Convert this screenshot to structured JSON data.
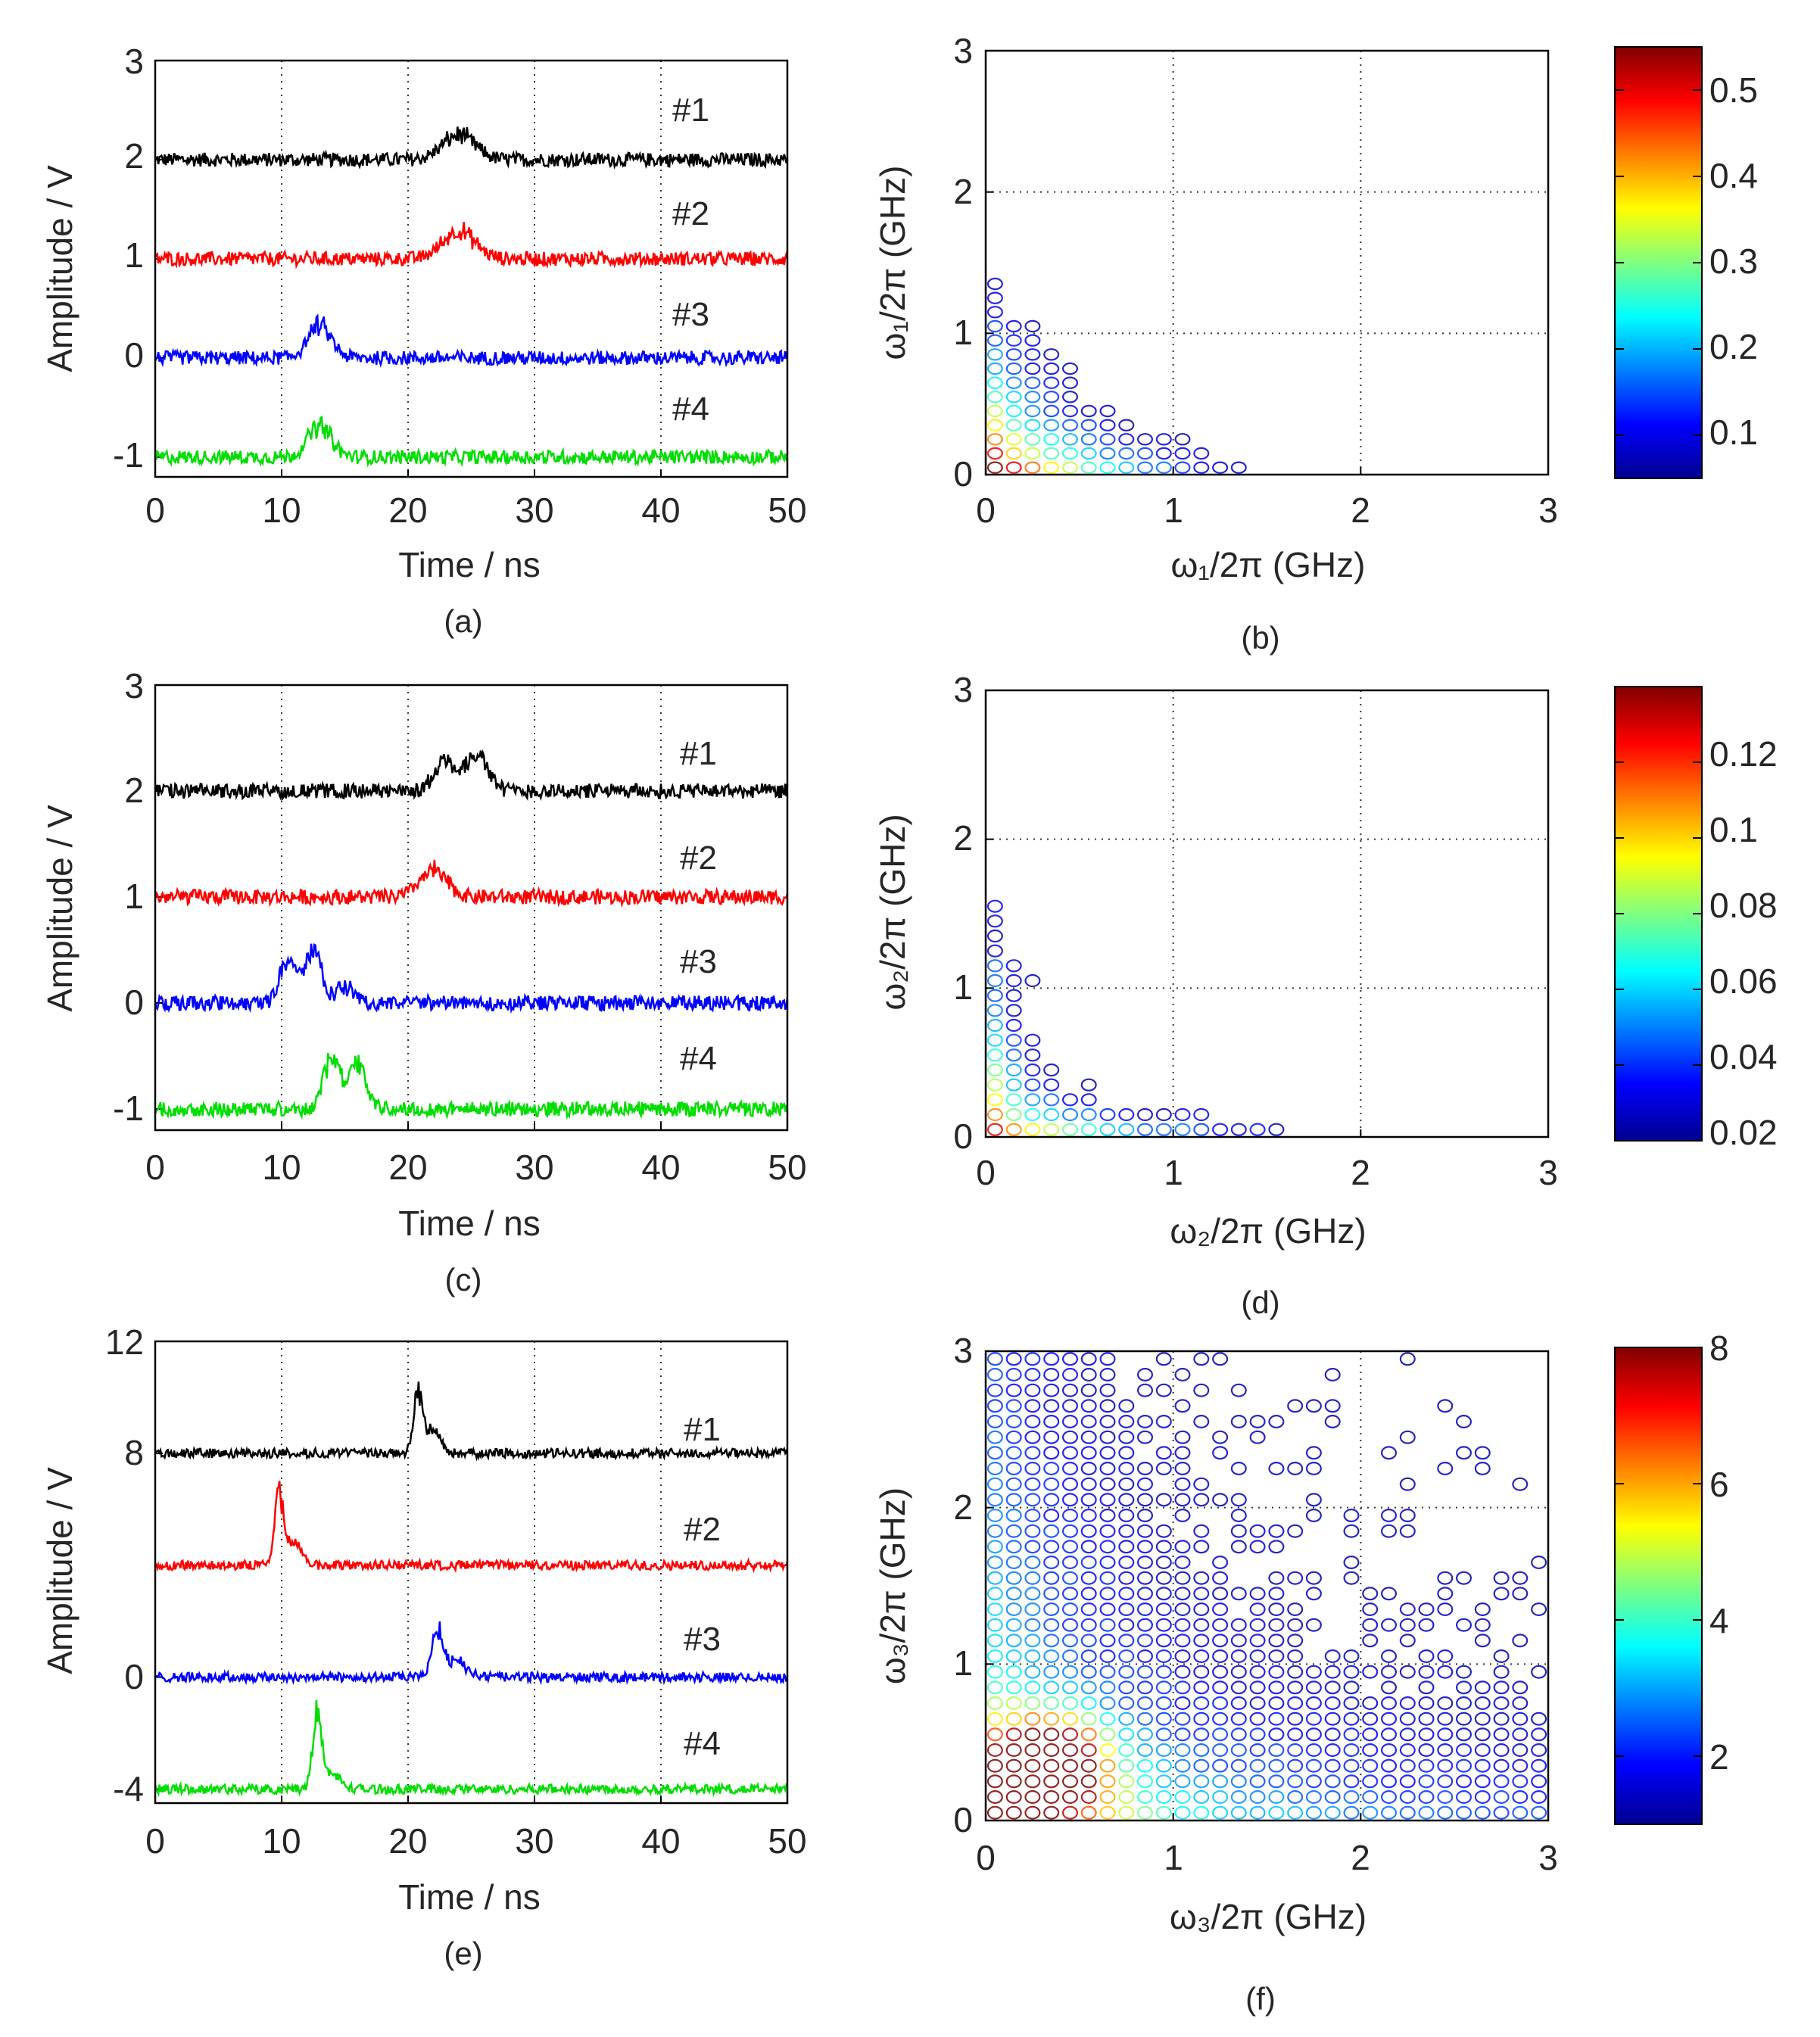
{
  "figure": {
    "panels": [
      {
        "id": "a",
        "caption": "(a)",
        "xlabel": "Time / ns",
        "ylabel": "Amplitude / V",
        "yticks": [
          "3",
          "2",
          "1",
          "0",
          "-1"
        ],
        "xticks": [
          "0",
          "10",
          "20",
          "30",
          "40",
          "50"
        ],
        "trace_labels": [
          "#1",
          "#2",
          "#3",
          "#4"
        ]
      },
      {
        "id": "b",
        "caption": "(b)",
        "xlabel": "ω₁/2π (GHz)",
        "ylabel": "ω₁/2π (GHz)",
        "xticks": [
          "0",
          "1",
          "2",
          "3"
        ],
        "yticks": [
          "0",
          "1",
          "2",
          "3"
        ],
        "colorbar_ticks": [
          "0.5",
          "0.4",
          "0.3",
          "0.2",
          "0.1"
        ]
      },
      {
        "id": "c",
        "caption": "(c)",
        "xlabel": "Time / ns",
        "ylabel": "Amplitude / V",
        "yticks": [
          "3",
          "2",
          "1",
          "0",
          "-1"
        ],
        "xticks": [
          "0",
          "10",
          "20",
          "30",
          "40",
          "50"
        ],
        "trace_labels": [
          "#1",
          "#2",
          "#3",
          "#4"
        ]
      },
      {
        "id": "d",
        "caption": "(d)",
        "xlabel": "ω₂/2π (GHz)",
        "ylabel": "ω₂/2π (GHz)",
        "xticks": [
          "0",
          "1",
          "2",
          "3"
        ],
        "yticks": [
          "0",
          "1",
          "2",
          "3"
        ],
        "colorbar_ticks": [
          "0.12",
          "0.1",
          "0.08",
          "0.06",
          "0.04",
          "0.02"
        ]
      },
      {
        "id": "e",
        "caption": "(e)",
        "xlabel": "Time / ns",
        "ylabel": "Amplitude / V",
        "yticks": [
          "12",
          "8",
          "0",
          "-4"
        ],
        "xticks": [
          "0",
          "10",
          "20",
          "30",
          "40",
          "50"
        ],
        "trace_labels": [
          "#1",
          "#2",
          "#3",
          "#4"
        ]
      },
      {
        "id": "f",
        "caption": "(f)",
        "xlabel": "ω₃/2π (GHz)",
        "ylabel": "ω₃/2π (GHz)",
        "xticks": [
          "0",
          "1",
          "2",
          "3"
        ],
        "yticks": [
          "0",
          "1",
          "2",
          "3"
        ],
        "colorbar_ticks": [
          "8",
          "6",
          "4",
          "2"
        ]
      }
    ]
  },
  "chart_data": [
    {
      "panel": "a",
      "type": "line",
      "title": "",
      "xlabel": "Time / ns",
      "ylabel": "Amplitude / V",
      "xlim": [
        0,
        50
      ],
      "ylim": [
        -1.2,
        3
      ],
      "yticks": [
        3,
        2,
        1,
        0,
        -1
      ],
      "xticks": [
        0,
        10,
        20,
        30,
        40,
        50
      ],
      "grid": "x-dotted",
      "series": [
        {
          "name": "#1",
          "color": "#000000",
          "baseline": 2,
          "noise": 0.05,
          "pulses": [
            {
              "t": 24,
              "amp": 0.25,
              "width": 1.8
            }
          ]
        },
        {
          "name": "#2",
          "color": "#ff0000",
          "baseline": 1,
          "noise": 0.05,
          "pulses": [
            {
              "t": 24,
              "amp": 0.28,
              "width": 1.8
            }
          ]
        },
        {
          "name": "#3",
          "color": "#0000ff",
          "baseline": 0,
          "noise": 0.05,
          "pulses": [
            {
              "t": 13,
              "amp": 0.32,
              "width": 1.3
            }
          ]
        },
        {
          "name": "#4",
          "color": "#00dd00",
          "baseline": -1,
          "noise": 0.05,
          "pulses": [
            {
              "t": 13,
              "amp": 0.32,
              "width": 1.3
            }
          ]
        }
      ]
    },
    {
      "panel": "b",
      "type": "heatmap",
      "title": "",
      "xlabel": "ω₁/2π (GHz)",
      "ylabel": "ω₁/2π (GHz)",
      "xlim": [
        0,
        3
      ],
      "ylim": [
        0,
        3
      ],
      "xticks": [
        0,
        1,
        2,
        3
      ],
      "yticks": [
        0,
        1,
        2,
        3
      ],
      "grid": "dotted",
      "colorbar": {
        "min": 0.05,
        "max": 0.55,
        "ticks": [
          0.1,
          0.2,
          0.3,
          0.4,
          0.5
        ]
      }
    },
    {
      "panel": "c",
      "type": "line",
      "title": "",
      "xlabel": "Time / ns",
      "ylabel": "Amplitude / V",
      "xlim": [
        0,
        50
      ],
      "ylim": [
        -1.2,
        3
      ],
      "yticks": [
        3,
        2,
        1,
        0,
        -1
      ],
      "xticks": [
        0,
        10,
        20,
        30,
        40,
        50
      ],
      "grid": "x-dotted",
      "series": [
        {
          "name": "#1",
          "color": "#000000",
          "baseline": 2,
          "noise": 0.05,
          "pulses": [
            {
              "t": 23,
              "amp": 0.3,
              "width": 1.2
            },
            {
              "t": 25.5,
              "amp": 0.35,
              "width": 1.2
            }
          ]
        },
        {
          "name": "#2",
          "color": "#ff0000",
          "baseline": 1,
          "noise": 0.05,
          "pulses": [
            {
              "t": 22,
              "amp": 0.25,
              "width": 1.5
            }
          ]
        },
        {
          "name": "#3",
          "color": "#0000ff",
          "baseline": 0,
          "noise": 0.05,
          "pulses": [
            {
              "t": 10.5,
              "amp": 0.45,
              "width": 0.9
            },
            {
              "t": 12.5,
              "amp": 0.5,
              "width": 0.9
            },
            {
              "t": 15,
              "amp": 0.15,
              "width": 1
            }
          ]
        },
        {
          "name": "#4",
          "color": "#00dd00",
          "baseline": -1,
          "noise": 0.05,
          "pulses": [
            {
              "t": 14,
              "amp": 0.5,
              "width": 0.9
            },
            {
              "t": 16,
              "amp": 0.45,
              "width": 0.9
            }
          ]
        }
      ]
    },
    {
      "panel": "d",
      "type": "heatmap",
      "title": "",
      "xlabel": "ω₂/2π (GHz)",
      "ylabel": "ω₂/2π (GHz)",
      "xlim": [
        0,
        3
      ],
      "ylim": [
        0,
        3
      ],
      "xticks": [
        0,
        1,
        2,
        3
      ],
      "yticks": [
        0,
        1,
        2,
        3
      ],
      "grid": "dotted",
      "colorbar": {
        "min": 0.02,
        "max": 0.14,
        "ticks": [
          0.02,
          0.04,
          0.06,
          0.08,
          0.1,
          0.12
        ]
      }
    },
    {
      "panel": "e",
      "type": "line",
      "title": "",
      "xlabel": "Time / ns",
      "ylabel": "Amplitude / V",
      "xlim": [
        0,
        50
      ],
      "ylim": [
        -4.5,
        12
      ],
      "yticks": [
        12,
        8,
        0,
        -4
      ],
      "xticks": [
        0,
        10,
        20,
        30,
        40,
        50
      ],
      "grid": "x-dotted",
      "series": [
        {
          "name": "#1",
          "color": "#000000",
          "baseline": 8,
          "noise": 0.12,
          "pulses": [
            {
              "t": 20.8,
              "amp": 2.2,
              "width": 0.5
            },
            {
              "t": 22,
              "amp": 0.8,
              "width": 0.8
            }
          ]
        },
        {
          "name": "#2",
          "color": "#ff0000",
          "baseline": 4,
          "noise": 0.12,
          "pulses": [
            {
              "t": 9.8,
              "amp": 2.6,
              "width": 0.5
            },
            {
              "t": 11,
              "amp": 0.8,
              "width": 0.8
            }
          ]
        },
        {
          "name": "#3",
          "color": "#0000ff",
          "baseline": 0,
          "noise": 0.12,
          "pulses": [
            {
              "t": 22.3,
              "amp": 1.6,
              "width": 0.6
            },
            {
              "t": 23.8,
              "amp": 0.6,
              "width": 1.2
            }
          ]
        },
        {
          "name": "#4",
          "color": "#00dd00",
          "baseline": -4,
          "noise": 0.12,
          "pulses": [
            {
              "t": 12.8,
              "amp": 2.6,
              "width": 0.5
            },
            {
              "t": 14,
              "amp": 0.5,
              "width": 1
            }
          ]
        }
      ]
    },
    {
      "panel": "f",
      "type": "heatmap",
      "title": "",
      "xlabel": "ω₃/2π (GHz)",
      "ylabel": "ω₃/2π (GHz)",
      "xlim": [
        0,
        3
      ],
      "ylim": [
        0,
        3
      ],
      "xticks": [
        0,
        1,
        2,
        3
      ],
      "yticks": [
        0,
        1,
        2,
        3
      ],
      "grid": "dotted",
      "colorbar": {
        "min": 1,
        "max": 8,
        "ticks": [
          2,
          4,
          6,
          8
        ]
      }
    }
  ]
}
